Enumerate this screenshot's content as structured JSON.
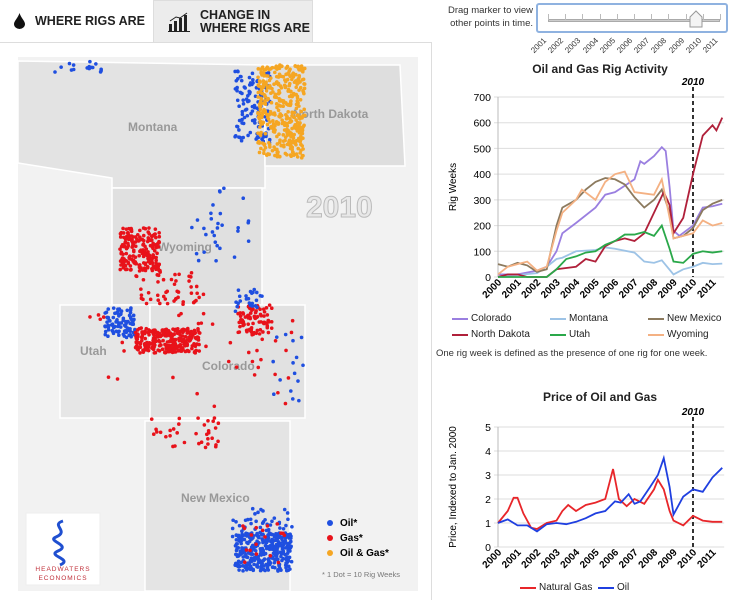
{
  "tabs": [
    {
      "label": "WHERE RIGS ARE",
      "icon": "oil-drop-icon",
      "active": true
    },
    {
      "label1": "CHANGE IN",
      "label2": "WHERE RIGS ARE",
      "icon": "bar-chart-icon",
      "active": false
    }
  ],
  "slider": {
    "hint1": "Drag marker to view",
    "hint2": "other points in time.",
    "years": [
      "2001",
      "2002",
      "2003",
      "2004",
      "2005",
      "2006",
      "2007",
      "2008",
      "2009",
      "2010",
      "2011"
    ],
    "selected": "2010"
  },
  "map": {
    "year_label": "2010",
    "states": [
      "Montana",
      "North Dakota",
      "Wyoming",
      "Utah",
      "Colorado",
      "New Mexico"
    ],
    "legend": [
      {
        "label": "Oil*",
        "color": "#1f4fe0"
      },
      {
        "label": "Gas*",
        "color": "#e8121a"
      },
      {
        "label": "Oil & Gas*",
        "color": "#f5a623"
      }
    ],
    "legend_note": "* 1 Dot = 10 Rig Weeks",
    "logo": "HEADWATERS ECONOMICS"
  },
  "note": "One rig week is defined as the presence of one rig for one week.",
  "chart_data": [
    {
      "type": "line",
      "title": "Oil and Gas Rig Activity",
      "ylabel": "Rig Weeks",
      "xlabel": "",
      "ylim": [
        0,
        700
      ],
      "yticks": [
        0,
        100,
        200,
        300,
        400,
        500,
        600,
        700
      ],
      "xticks": [
        2000,
        2001,
        2002,
        2003,
        2004,
        2005,
        2006,
        2007,
        2008,
        2009,
        2010,
        2011
      ],
      "marker": "2010",
      "grid": true,
      "legend": "bottom",
      "series": [
        {
          "name": "Colorado",
          "color": "#9a7fe0",
          "x": [
            2000,
            2001,
            2002,
            2002.5,
            2003,
            2003.3,
            2004,
            2005,
            2005.5,
            2006,
            2006.5,
            2007,
            2007.3,
            2007.5,
            2008,
            2008.4,
            2008.6,
            2008.8,
            2009,
            2009.3,
            2010,
            2010.5,
            2011,
            2011.5
          ],
          "y": [
            10,
            10,
            25,
            40,
            100,
            170,
            210,
            270,
            320,
            330,
            355,
            380,
            450,
            440,
            470,
            505,
            490,
            350,
            180,
            160,
            200,
            270,
            275,
            285
          ]
        },
        {
          "name": "Montana",
          "color": "#9dc3e6",
          "x": [
            2000,
            2002,
            2002.5,
            2003,
            2003.3,
            2004,
            2005,
            2005.5,
            2006,
            2007,
            2007.5,
            2008,
            2008.4,
            2009,
            2009.5,
            2010,
            2010.5,
            2011,
            2011.5
          ],
          "y": [
            0,
            15,
            40,
            70,
            75,
            100,
            105,
            115,
            110,
            95,
            60,
            55,
            65,
            10,
            30,
            40,
            55,
            50,
            52
          ]
        },
        {
          "name": "New Mexico",
          "color": "#8c7a5e",
          "x": [
            2000,
            2000.5,
            2001,
            2001.5,
            2002,
            2002.5,
            2003,
            2003.3,
            2004,
            2004.5,
            2005,
            2005.5,
            2006,
            2006.5,
            2007,
            2007.5,
            2008,
            2008.4,
            2008.8,
            2009,
            2009.5,
            2010,
            2010.5,
            2011,
            2011.5
          ],
          "y": [
            50,
            40,
            55,
            45,
            20,
            30,
            200,
            270,
            300,
            340,
            370,
            385,
            380,
            360,
            310,
            270,
            300,
            340,
            250,
            150,
            160,
            190,
            260,
            285,
            300
          ]
        },
        {
          "name": "North Dakota",
          "color": "#b0203a",
          "x": [
            2000,
            2000.5,
            2001,
            2001.5,
            2002.5,
            2003,
            2004,
            2004.5,
            2005,
            2005.5,
            2006,
            2006.5,
            2007,
            2007.5,
            2008,
            2008.5,
            2008.8,
            2009,
            2009.5,
            2010,
            2010.5,
            2011,
            2011.2,
            2011.5
          ],
          "y": [
            0,
            10,
            10,
            0,
            0,
            30,
            40,
            70,
            60,
            120,
            140,
            150,
            140,
            170,
            250,
            330,
            280,
            170,
            230,
            400,
            550,
            590,
            570,
            620
          ]
        },
        {
          "name": "Utah",
          "color": "#2aa84a",
          "x": [
            2000,
            2002.5,
            2003,
            2003.5,
            2004,
            2004.5,
            2005,
            2005.5,
            2006,
            2006.5,
            2007,
            2007.5,
            2008,
            2008.4,
            2008.8,
            2009,
            2009.5,
            2010,
            2010.5,
            2011,
            2011.5
          ],
          "y": [
            0,
            0,
            30,
            70,
            80,
            95,
            100,
            125,
            140,
            165,
            165,
            175,
            160,
            200,
            110,
            60,
            55,
            90,
            100,
            95,
            100
          ]
        },
        {
          "name": "Wyoming",
          "color": "#f4b183",
          "x": [
            2000,
            2000.5,
            2001,
            2001.5,
            2002,
            2002.5,
            2003,
            2003.3,
            2004,
            2004.3,
            2005,
            2005.5,
            2006,
            2006.5,
            2007,
            2007.5,
            2008,
            2008.4,
            2008.8,
            2009,
            2009.5,
            2010,
            2010.5,
            2011,
            2011.5
          ],
          "y": [
            10,
            40,
            50,
            60,
            25,
            40,
            180,
            250,
            300,
            340,
            300,
            370,
            400,
            410,
            330,
            325,
            320,
            380,
            230,
            150,
            160,
            170,
            220,
            200,
            210
          ]
        }
      ]
    },
    {
      "type": "line",
      "title": "Price of Oil and Gas",
      "ylabel": "Price, Indexed to Jan. 2000",
      "xlabel": "",
      "ylim": [
        0,
        5
      ],
      "yticks": [
        0,
        1,
        2,
        3,
        4,
        5
      ],
      "xticks": [
        2000,
        2001,
        2002,
        2003,
        2004,
        2005,
        2006,
        2007,
        2008,
        2009,
        2010,
        2011
      ],
      "marker": "2010",
      "grid": true,
      "legend": "bottom",
      "series": [
        {
          "name": "Natural Gas",
          "color": "#e8262a",
          "x": [
            2000,
            2000.5,
            2000.8,
            2001,
            2001.3,
            2001.7,
            2002,
            2002.5,
            2003,
            2003.3,
            2003.6,
            2004,
            2004.5,
            2005,
            2005.5,
            2005.9,
            2006.2,
            2006.6,
            2007,
            2007.5,
            2008,
            2008.2,
            2008.5,
            2008.8,
            2009,
            2009.5,
            2010,
            2010.5,
            2011,
            2011.5
          ],
          "y": [
            1,
            1.5,
            2.05,
            2.05,
            1.4,
            0.8,
            0.75,
            1.0,
            1.1,
            1.5,
            1.75,
            1.5,
            1.75,
            1.85,
            2.0,
            3.25,
            2.0,
            1.7,
            2.0,
            1.8,
            2.4,
            2.8,
            2.4,
            1.5,
            1.1,
            0.9,
            1.3,
            1.1,
            1.05,
            1.05
          ]
        },
        {
          "name": "Oil",
          "color": "#1f3fe0",
          "x": [
            2000,
            2000.5,
            2001,
            2001.5,
            2002,
            2002.5,
            2003,
            2003.5,
            2004,
            2004.5,
            2005,
            2005.5,
            2006,
            2006.3,
            2006.7,
            2007,
            2007.3,
            2007.8,
            2008.2,
            2008.5,
            2008.8,
            2009,
            2009.5,
            2010,
            2010.5,
            2011,
            2011.5
          ],
          "y": [
            1,
            1.15,
            0.9,
            0.9,
            0.65,
            0.95,
            1.0,
            0.95,
            1.05,
            1.2,
            1.4,
            1.5,
            1.9,
            1.85,
            2.2,
            1.8,
            1.9,
            2.5,
            3.0,
            3.7,
            2.5,
            1.35,
            2.1,
            2.4,
            2.3,
            2.9,
            3.3
          ]
        }
      ]
    }
  ]
}
